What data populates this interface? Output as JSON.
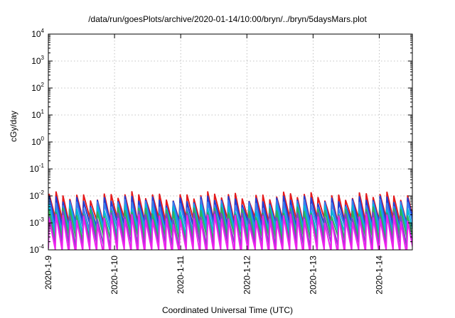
{
  "chart_data": {
    "type": "line",
    "title": "/data/run/goesPlots/archive/2020-01-14/10:00/bryn/../bryn/5daysMars.plot",
    "xlabel": "Coordinated Universal Time (UTC)",
    "ylabel": "cGy/day",
    "x_range": [
      "2020-01-09T00:00",
      "2020-01-14T12:00"
    ],
    "ylim": [
      0.0001,
      10000
    ],
    "yscale": "log",
    "grid": true,
    "x_ticks": [
      "2020-1-9",
      "2020-1-10",
      "2020-1-11",
      "2020-1-12",
      "2020-1-13",
      "2020-1-14"
    ],
    "y_ticks": [
      {
        "base": "10",
        "exp": "4"
      },
      {
        "base": "10",
        "exp": "3"
      },
      {
        "base": "10",
        "exp": "2"
      },
      {
        "base": "10",
        "exp": "1"
      },
      {
        "base": "10",
        "exp": "0"
      },
      {
        "base": "10",
        "exp": "-1"
      },
      {
        "base": "10",
        "exp": "-2"
      },
      {
        "base": "10",
        "exp": "-3"
      },
      {
        "base": "10",
        "exp": "-4"
      }
    ],
    "cycle_hours": 2.5,
    "series": [
      {
        "color": "#e41a1c",
        "peak": 0.01,
        "trough": 0.0013
      },
      {
        "color": "#1f3fd6",
        "peak": 0.0072,
        "trough": 0.0009
      },
      {
        "color": "#3a7ff0",
        "peak": 0.0052,
        "trough": 0.00062
      },
      {
        "color": "#00b8d8",
        "peak": 0.0036,
        "trough": 0.00042
      },
      {
        "color": "#2fb05a",
        "peak": 0.0027,
        "trough": 0.00028
      },
      {
        "color": "#8040c8",
        "peak": 0.0019,
        "trough": 0.00016
      },
      {
        "color": "#ee22ee",
        "peak": 0.0015,
        "trough": 9e-05
      }
    ]
  }
}
